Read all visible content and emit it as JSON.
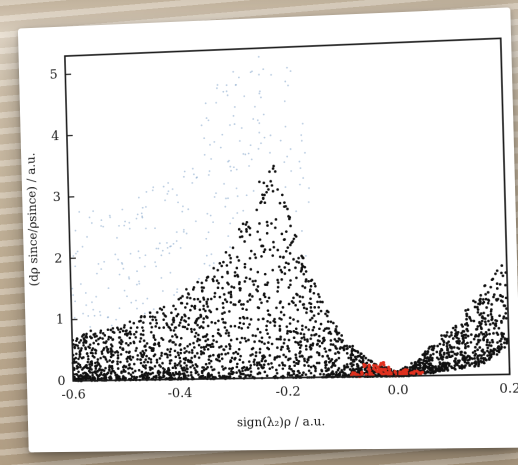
{
  "chart_data": {
    "type": "scatter",
    "title": "",
    "xlabel": "sign(λ₂)ρ / a.u.",
    "ylabel": "(dρ since/ρsince) / a.u.",
    "xlim": [
      -0.6,
      0.2
    ],
    "ylim": [
      0,
      5.3
    ],
    "x_ticks": [
      "-0.6",
      "-0.4",
      "-0.2",
      "0.0",
      "0.2"
    ],
    "y_ticks": [
      "0",
      "1",
      "2",
      "3",
      "4",
      "5"
    ],
    "grid": false,
    "series": [
      {
        "color": "#111111",
        "envelope": [
          [
            -0.6,
            0.0,
            0.75
          ],
          [
            -0.55,
            0.0,
            0.8
          ],
          [
            -0.5,
            0.0,
            0.95
          ],
          [
            -0.45,
            0.0,
            1.1
          ],
          [
            -0.4,
            0.0,
            1.35
          ],
          [
            -0.35,
            0.0,
            1.6
          ],
          [
            -0.3,
            0.0,
            2.1
          ],
          [
            -0.27,
            0.0,
            2.6
          ],
          [
            -0.24,
            0.0,
            3.2
          ],
          [
            -0.22,
            0.0,
            3.6
          ],
          [
            -0.2,
            0.0,
            3.0
          ],
          [
            -0.18,
            0.0,
            2.3
          ],
          [
            -0.15,
            0.0,
            1.6
          ],
          [
            -0.12,
            0.0,
            1.0
          ],
          [
            -0.09,
            0.0,
            0.6
          ],
          [
            -0.06,
            0.0,
            0.35
          ],
          [
            -0.04,
            0.0,
            0.2
          ],
          [
            -0.02,
            0.0,
            0.12
          ],
          [
            0.0,
            0.0,
            0.06
          ],
          [
            0.02,
            0.0,
            0.15
          ],
          [
            0.04,
            0.05,
            0.3
          ],
          [
            0.06,
            0.06,
            0.45
          ],
          [
            0.08,
            0.08,
            0.6
          ],
          [
            0.1,
            0.1,
            0.75
          ],
          [
            0.12,
            0.12,
            0.95
          ],
          [
            0.14,
            0.15,
            1.2
          ],
          [
            0.16,
            0.2,
            1.45
          ],
          [
            0.18,
            0.35,
            1.6
          ],
          [
            0.2,
            0.5,
            1.9
          ]
        ]
      },
      {
        "color": "#e0301e",
        "points": [
          [
            -0.06,
            0.05
          ],
          [
            -0.05,
            0.1
          ],
          [
            -0.04,
            0.15
          ],
          [
            -0.035,
            0.08
          ],
          [
            -0.03,
            0.2
          ],
          [
            -0.025,
            0.05
          ],
          [
            -0.02,
            0.12
          ],
          [
            -0.015,
            0.03
          ],
          [
            -0.01,
            0.06
          ],
          [
            0.0,
            0.02
          ],
          [
            0.01,
            0.04
          ],
          [
            0.02,
            0.03
          ],
          [
            0.03,
            0.06
          ],
          [
            0.04,
            0.04
          ],
          [
            -0.045,
            0.03
          ],
          [
            -0.055,
            0.18
          ],
          [
            -0.028,
            0.1
          ],
          [
            0.015,
            0.08
          ],
          [
            -0.07,
            0.02
          ],
          [
            -0.08,
            0.04
          ]
        ]
      }
    ]
  }
}
